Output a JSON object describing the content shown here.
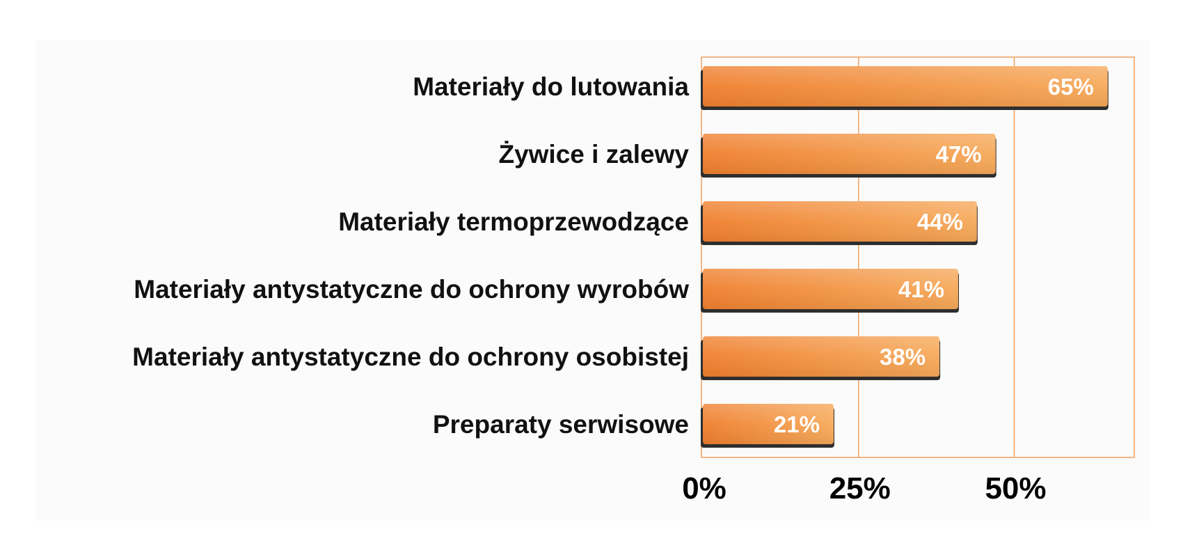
{
  "chart_data": {
    "type": "bar",
    "orientation": "horizontal",
    "categories": [
      "Materiały do lutowania",
      "Żywice i zalewy",
      "Materiały termoprzewodzące",
      "Materiały antystatyczne do ochrony wyrobów",
      "Materiały antystatyczne do ochrony osobistej",
      "Preparaty serwisowe"
    ],
    "values": [
      65,
      47,
      44,
      41,
      38,
      21
    ],
    "value_labels": [
      "65%",
      "47%",
      "44%",
      "41%",
      "38%",
      "21%"
    ],
    "x_ticks": [
      0,
      25,
      50
    ],
    "x_tick_labels": [
      "0%",
      "25%",
      "50%"
    ],
    "xlim": [
      0,
      69
    ],
    "grid": true,
    "legend": "none",
    "title": "",
    "xlabel": "",
    "ylabel": "",
    "colors": {
      "bar_start": "#ef7f2e",
      "bar_end": "#f6a95a",
      "bar_shadow": "#2e2e2e",
      "plot_border": "#f0a060",
      "gridline": "#f0a060",
      "background": "#fbfbfb"
    }
  }
}
